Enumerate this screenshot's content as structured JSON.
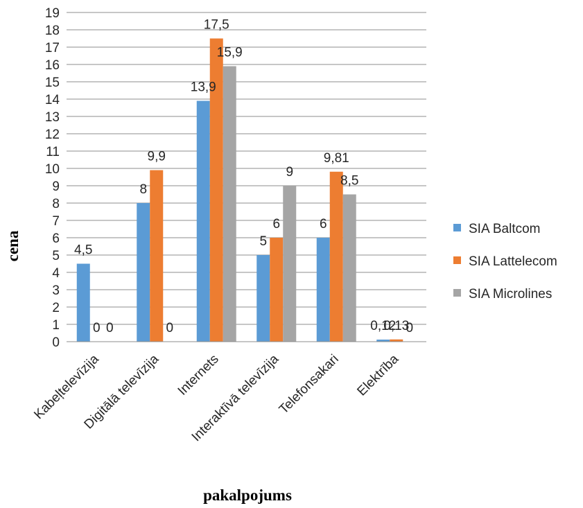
{
  "chart_data": {
    "type": "bar",
    "title": "",
    "xlabel": "pakalpojums",
    "ylabel": "cena",
    "ylim": [
      0,
      19
    ],
    "yticks": [
      0,
      1,
      2,
      3,
      4,
      5,
      6,
      7,
      8,
      9,
      10,
      11,
      12,
      13,
      14,
      15,
      16,
      17,
      18,
      19
    ],
    "grid": true,
    "legend_position": "right",
    "categories": [
      "Kabeļtelevīzija",
      "Digitālā televīzija",
      "Internets",
      "Interaktīvā televīzija",
      "Telefonsakari",
      "Elektrība"
    ],
    "series": [
      {
        "name": "SIA Baltcom",
        "color": "#5B9BD5",
        "values": [
          4.5,
          8,
          13.9,
          5,
          6,
          0.12
        ],
        "labels": [
          "4,5",
          "8",
          "13,9",
          "5",
          "6",
          "0,12"
        ]
      },
      {
        "name": "SIA Lattelecom",
        "color": "#ED7D31",
        "values": [
          0,
          9.9,
          17.5,
          6,
          9.81,
          0.13
        ],
        "labels": [
          "0",
          "9,9",
          "17,5",
          "6",
          "9,81",
          "0,13"
        ]
      },
      {
        "name": "SIA Microlines",
        "color": "#A5A5A5",
        "values": [
          0,
          0,
          15.9,
          9,
          8.5,
          0
        ],
        "labels": [
          "0",
          "0",
          "15,9",
          "9",
          "8,5",
          "0"
        ]
      }
    ]
  }
}
